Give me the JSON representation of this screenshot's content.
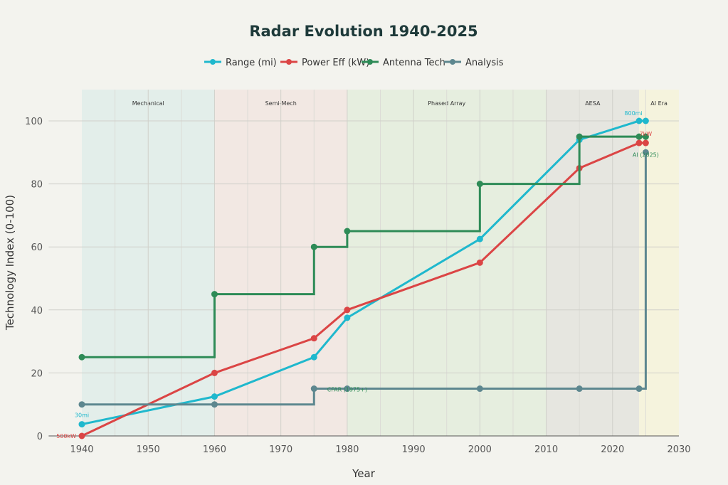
{
  "chart_data": {
    "type": "line",
    "title": "Radar Evolution 1940-2025",
    "xlabel": "Year",
    "ylabel": "Technology Index (0-100)",
    "xlim": [
      1935,
      2030
    ],
    "ylim": [
      0,
      110
    ],
    "xticks": [
      1940,
      1950,
      1960,
      1970,
      1980,
      1990,
      2000,
      2010,
      2020,
      2030
    ],
    "yticks": [
      0,
      20,
      40,
      60,
      80,
      100
    ],
    "grid": true,
    "legend_placement": "top-center",
    "eras": [
      {
        "label": "Mechanical",
        "start": 1940,
        "end": 1960,
        "color": "#e3eeea"
      },
      {
        "label": "Semi-Mech",
        "start": 1960,
        "end": 1980,
        "color": "#f2e8e3"
      },
      {
        "label": "Phased Array",
        "start": 1980,
        "end": 2010,
        "color": "#e6eedf"
      },
      {
        "label": "AESA",
        "start": 2010,
        "end": 2024,
        "color": "#e6e6e0"
      },
      {
        "label": "AI Era",
        "start": 2024,
        "end": 2030,
        "color": "#f5f3dd"
      }
    ],
    "x": [
      1940,
      1960,
      1975,
      1980,
      2000,
      2015,
      2024,
      2025
    ],
    "series": [
      {
        "name": "Range (mi)",
        "color": "#1fb8cd",
        "shape": "linear",
        "values": [
          3.7,
          12.5,
          25,
          37.5,
          62.5,
          94,
          100,
          100
        ]
      },
      {
        "name": "Power Eff (kW)",
        "color": "#db4545",
        "shape": "linear",
        "values": [
          0,
          20,
          31,
          40,
          55,
          85,
          93,
          93
        ]
      },
      {
        "name": "Antenna Tech",
        "color": "#2e8b57",
        "shape": "step",
        "values": [
          25,
          45,
          60,
          65,
          80,
          95,
          95,
          95
        ]
      },
      {
        "name": "Analysis",
        "color": "#5d878f",
        "shape": "step",
        "values": [
          10,
          10,
          15,
          15,
          15,
          15,
          15,
          90
        ]
      }
    ],
    "annotations": [
      {
        "text": "30mi",
        "x": 1940,
        "y": 3.7,
        "color": "#1fb8cd"
      },
      {
        "text": "500kW",
        "x": 1940,
        "y": 0,
        "color": "#db4545"
      },
      {
        "text": "800mi",
        "x": 2024,
        "y": 100,
        "color": "#1fb8cd"
      },
      {
        "text": "7kW",
        "x": 2025,
        "y": 93,
        "color": "#db4545"
      },
      {
        "text": "AI (2025)",
        "x": 2025,
        "y": 90,
        "color": "#2e8b57"
      },
      {
        "text": "CFAR (1975+)",
        "x": 1980,
        "y": 15,
        "color": "#2e8b57"
      }
    ]
  }
}
